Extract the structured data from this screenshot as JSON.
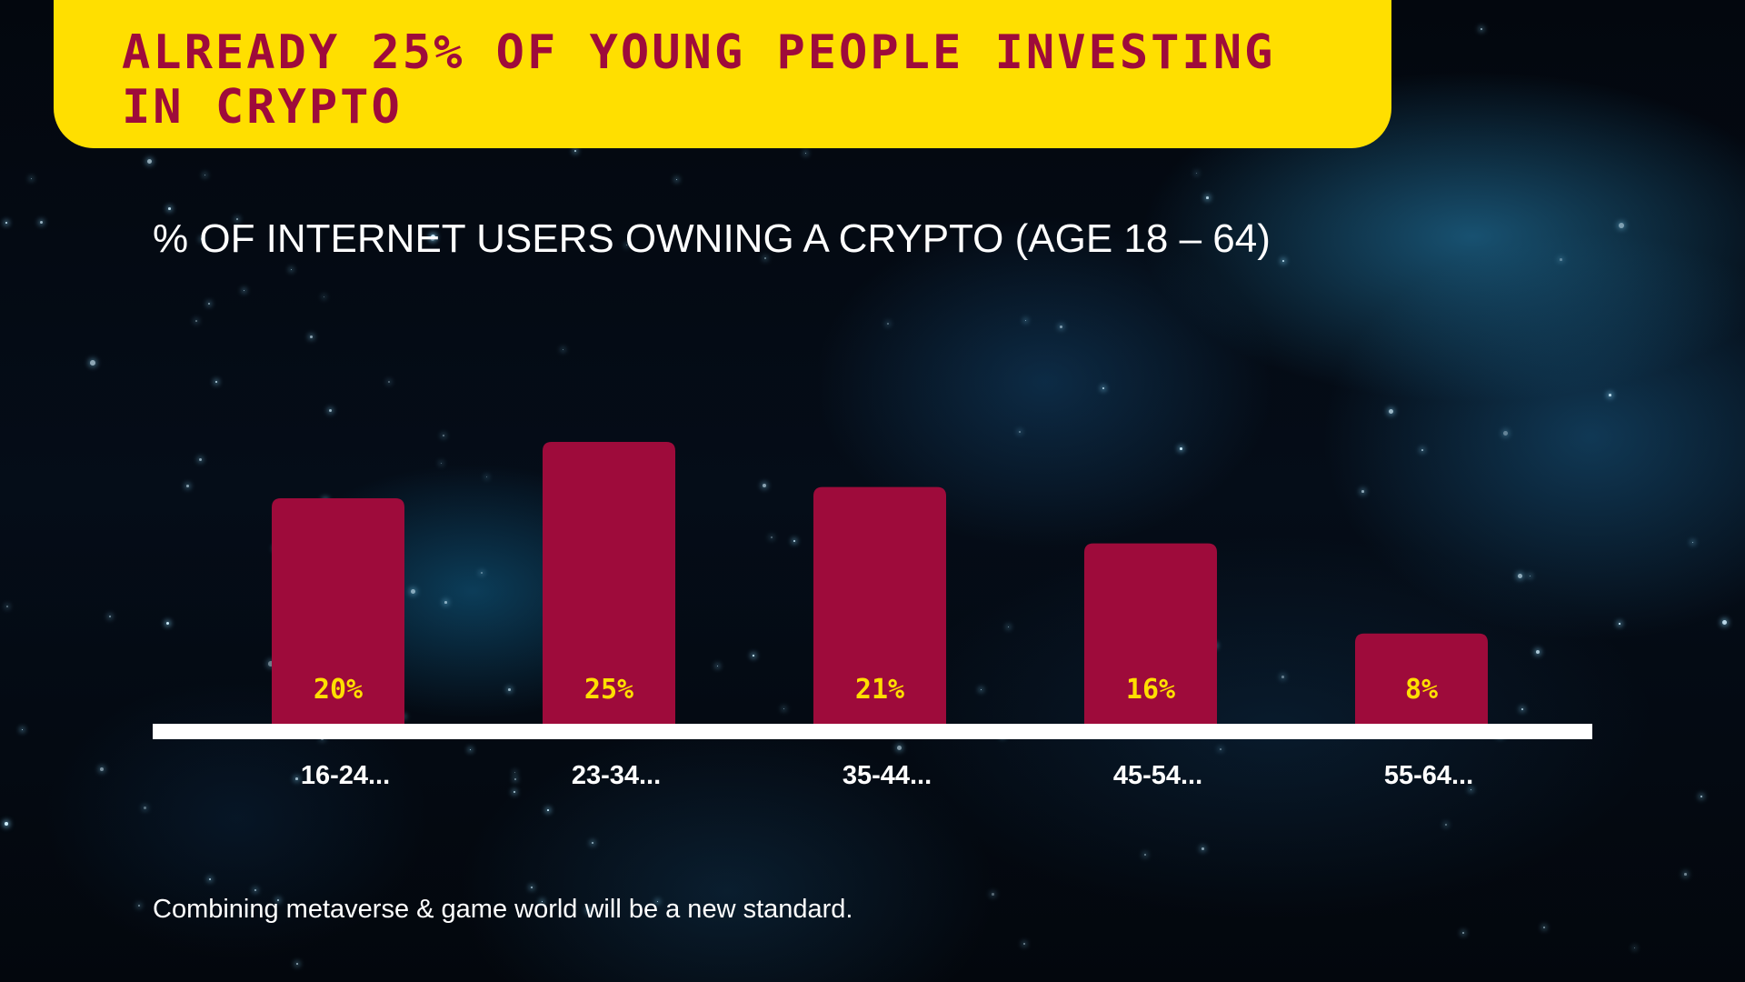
{
  "title": "Already 25% of young people investing in crypto",
  "chart_data": {
    "type": "bar",
    "title": "% OF INTERNET USERS OWNING A CRYPTO (AGE 18 – 64)",
    "categories": [
      "16-24...",
      "23-34...",
      "35-44...",
      "45-54...",
      "55-64..."
    ],
    "values": [
      20,
      25,
      21,
      16,
      8
    ],
    "value_labels": [
      "20%",
      "25%",
      "21%",
      "16%",
      "8%"
    ],
    "xlabel": "",
    "ylabel": "",
    "ylim": [
      0,
      30
    ],
    "grid": false,
    "legend": "none"
  },
  "footnote": "Combining metaverse & game world will be a new standard.",
  "colors": {
    "accent_yellow": "#ffdf00",
    "bar": "#9e0b3b",
    "text": "#ffffff"
  }
}
